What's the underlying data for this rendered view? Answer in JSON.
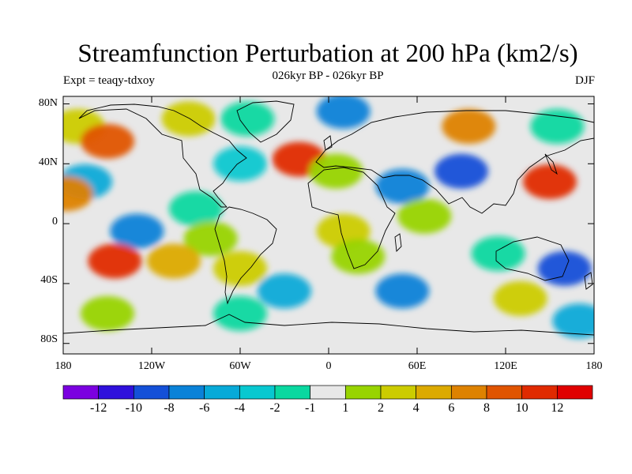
{
  "title": "Streamfunction Perturbation at 200 hPa (km2/s)",
  "subtitle": "026kyr BP - 026kyr BP",
  "left_label": "Expt = teaqy-tdxoy",
  "right_label": "DJF",
  "y_ticks": [
    "80N",
    "40N",
    "0",
    "40S",
    "80S"
  ],
  "x_ticks": [
    "180",
    "120W",
    "60W",
    "0",
    "60E",
    "120E",
    "180"
  ],
  "colorbar": {
    "labels": [
      "-12",
      "-10",
      "-8",
      "-6",
      "-4",
      "-2",
      "-1",
      "1",
      "2",
      "4",
      "6",
      "8",
      "10",
      "12"
    ],
    "colors": [
      "#7b00e0",
      "#2f10dc",
      "#1450d8",
      "#0a82d8",
      "#07aad8",
      "#08c8d0",
      "#0ad8a0",
      "#e8e8e8",
      "#98d400",
      "#cccc00",
      "#dcaa00",
      "#de8200",
      "#e05400",
      "#e02a00",
      "#e00000"
    ]
  },
  "map": {
    "colors": {
      "land_outline": "#000000",
      "background": "#e8e8e8"
    },
    "anomaly_cells": [
      {
        "lon": -170,
        "lat": 65,
        "level": 9
      },
      {
        "lon": -150,
        "lat": 55,
        "level": 12
      },
      {
        "lon": -95,
        "lat": 70,
        "level": 9
      },
      {
        "lon": -55,
        "lat": 70,
        "level": 6
      },
      {
        "lon": 10,
        "lat": 75,
        "level": 3
      },
      {
        "lon": 95,
        "lat": 65,
        "level": 11
      },
      {
        "lon": 155,
        "lat": 65,
        "level": 6
      },
      {
        "lon": -20,
        "lat": 43,
        "level": 13
      },
      {
        "lon": -165,
        "lat": 28,
        "level": 4
      },
      {
        "lon": -60,
        "lat": 40,
        "level": 5
      },
      {
        "lon": 5,
        "lat": 35,
        "level": 8
      },
      {
        "lon": 50,
        "lat": 25,
        "level": 3
      },
      {
        "lon": 90,
        "lat": 35,
        "level": 2
      },
      {
        "lon": 150,
        "lat": 28,
        "level": 13
      },
      {
        "lon": -178,
        "lat": 20,
        "level": 11
      },
      {
        "lon": -130,
        "lat": -5,
        "level": 3
      },
      {
        "lon": -90,
        "lat": 10,
        "level": 6
      },
      {
        "lon": -80,
        "lat": -10,
        "level": 8
      },
      {
        "lon": 10,
        "lat": -5,
        "level": 9
      },
      {
        "lon": 65,
        "lat": 5,
        "level": 8
      },
      {
        "lon": -145,
        "lat": -25,
        "level": 13
      },
      {
        "lon": -105,
        "lat": -25,
        "level": 10
      },
      {
        "lon": -60,
        "lat": -30,
        "level": 9
      },
      {
        "lon": 20,
        "lat": -22,
        "level": 8
      },
      {
        "lon": 115,
        "lat": -20,
        "level": 6
      },
      {
        "lon": 160,
        "lat": -30,
        "level": 2
      },
      {
        "lon": -30,
        "lat": -45,
        "level": 4
      },
      {
        "lon": 50,
        "lat": -45,
        "level": 3
      },
      {
        "lon": -150,
        "lat": -60,
        "level": 8
      },
      {
        "lon": -60,
        "lat": -60,
        "level": 6
      },
      {
        "lon": 130,
        "lat": -50,
        "level": 9
      },
      {
        "lon": 170,
        "lat": -65,
        "level": 4
      }
    ]
  }
}
